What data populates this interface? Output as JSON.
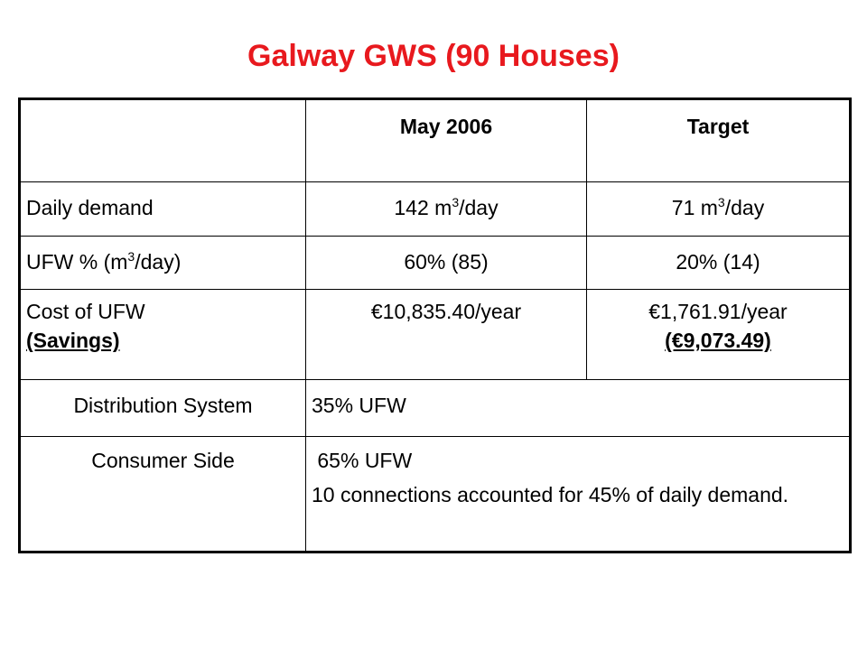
{
  "title": "Galway GWS (90 Houses)",
  "colors": {
    "title": "#e8191e",
    "border": "#000000",
    "text": "#000000",
    "background": "#ffffff"
  },
  "table": {
    "header": {
      "blank": "",
      "col1": "May 2006",
      "col2": "Target"
    },
    "daily_demand": {
      "label": "Daily demand",
      "may_value": "142 m",
      "may_sup": "3",
      "may_unit": "/day",
      "target_value": "71 m",
      "target_sup": "3",
      "target_unit": "/day"
    },
    "ufw_percent": {
      "label_pre": "UFW % (m",
      "label_sup": "3",
      "label_post": "/day)",
      "may_value": "60% (85)",
      "target_value": "20% (14)"
    },
    "cost": {
      "label": "Cost of UFW",
      "label_savings": "(Savings)",
      "may_value": "€10,835.40/year",
      "target_value": "€1,761.91/year",
      "target_savings": "(€9,073.49)"
    },
    "distribution": {
      "label": "Distribution System",
      "value": "35% UFW"
    },
    "consumer": {
      "label": "Consumer Side",
      "value": " 65% UFW",
      "description": "10 connections accounted for 45% of daily demand."
    }
  }
}
